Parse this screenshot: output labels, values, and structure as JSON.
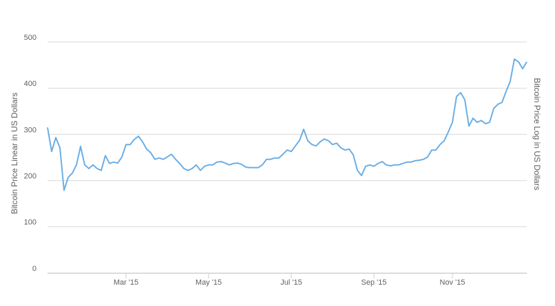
{
  "chart_data": {
    "type": "line",
    "ylabel": "Bitcoin Price Linear in US Dollars",
    "y2label": "Bitcoin Price Log in US Dollars",
    "categories": [
      null,
      null,
      null,
      null,
      null,
      null,
      null,
      null,
      null,
      null,
      null,
      null,
      null,
      null,
      null,
      null,
      null,
      null,
      null,
      "Mar '15",
      null,
      null,
      null,
      null,
      null,
      null,
      null,
      null,
      null,
      null,
      null,
      null,
      null,
      null,
      null,
      null,
      null,
      null,
      null,
      "May '15",
      null,
      null,
      null,
      null,
      null,
      null,
      null,
      null,
      null,
      null,
      null,
      null,
      null,
      null,
      null,
      null,
      null,
      null,
      null,
      "Jul '15",
      null,
      null,
      null,
      null,
      null,
      null,
      null,
      null,
      null,
      null,
      null,
      null,
      null,
      null,
      null,
      null,
      null,
      null,
      null,
      "Sep '15",
      null,
      null,
      null,
      null,
      null,
      null,
      null,
      null,
      null,
      null,
      null,
      null,
      null,
      null,
      null,
      null,
      null,
      null,
      "Nov '15",
      null,
      null,
      null,
      null,
      null,
      null,
      null,
      null,
      null,
      null,
      null,
      null,
      null,
      null,
      null,
      null,
      null,
      null
    ],
    "series": [
      {
        "color": "#6aaee6",
        "values": [
          315,
          263,
          293,
          271,
          179,
          207,
          216,
          234,
          274,
          234,
          226,
          234,
          226,
          222,
          254,
          237,
          240,
          238,
          251,
          278,
          278,
          289,
          296,
          284,
          268,
          260,
          246,
          249,
          246,
          251,
          257,
          246,
          237,
          226,
          222,
          226,
          234,
          222,
          231,
          234,
          234,
          240,
          241,
          238,
          234,
          237,
          238,
          235,
          229,
          228,
          228,
          228,
          234,
          246,
          246,
          249,
          249,
          257,
          266,
          263,
          275,
          287,
          311,
          286,
          278,
          275,
          284,
          290,
          286,
          278,
          281,
          271,
          266,
          268,
          256,
          222,
          211,
          231,
          234,
          231,
          237,
          241,
          234,
          232,
          234,
          234,
          237,
          240,
          240,
          243,
          244,
          246,
          251,
          266,
          266,
          278,
          286,
          305,
          326,
          382,
          390,
          375,
          318,
          335,
          326,
          330,
          323,
          326,
          356,
          365,
          369,
          393,
          415,
          463,
          457,
          442,
          457
        ]
      }
    ],
    "ylim": [
      0,
      500
    ],
    "yticks": [
      0,
      100,
      200,
      300,
      400,
      500
    ],
    "grid": true
  }
}
